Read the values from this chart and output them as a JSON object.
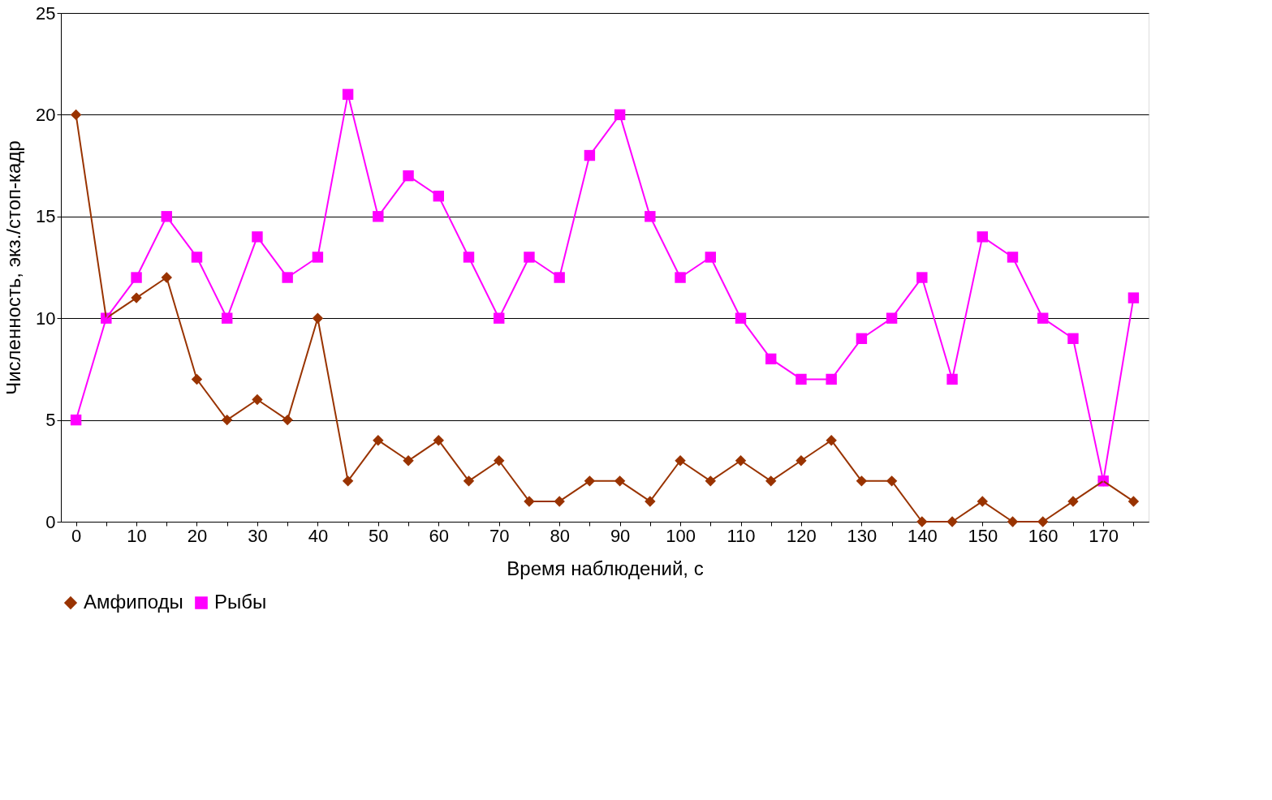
{
  "chart_data": {
    "type": "line",
    "xlabel": "Время наблюдений, с",
    "ylabel": "Численность, экз./стоп-кадр",
    "categories": [
      "0",
      null,
      "10",
      null,
      "20",
      null,
      "30",
      null,
      "40",
      null,
      "50",
      null,
      "60",
      null,
      "70",
      null,
      "80",
      null,
      "90",
      null,
      "100",
      null,
      "110",
      null,
      "120",
      null,
      "130",
      null,
      "140",
      null,
      "150",
      null,
      "160",
      null,
      "170",
      null
    ],
    "series": [
      {
        "name": "Амфиподы",
        "color": "#993300",
        "marker": "diamond",
        "values": [
          20,
          10,
          11,
          12,
          7,
          5,
          6,
          5,
          10,
          2,
          4,
          3,
          4,
          2,
          3,
          1,
          1,
          2,
          2,
          1,
          3,
          2,
          3,
          2,
          3,
          4,
          2,
          2,
          0,
          0,
          1,
          0,
          0,
          1,
          2,
          1
        ]
      },
      {
        "name": "Рыбы",
        "color": "#ff00ff",
        "marker": "square",
        "values": [
          5,
          10,
          12,
          15,
          13,
          10,
          14,
          12,
          13,
          21,
          15,
          17,
          16,
          13,
          10,
          13,
          12,
          18,
          20,
          15,
          12,
          13,
          10,
          8,
          7,
          7,
          9,
          10,
          12,
          7,
          14,
          13,
          10,
          9,
          2,
          11
        ]
      }
    ],
    "ylim": [
      0,
      25
    ],
    "yticks": [
      0,
      5,
      10,
      15,
      20,
      25
    ],
    "grid": "y",
    "legend": "bottom"
  }
}
